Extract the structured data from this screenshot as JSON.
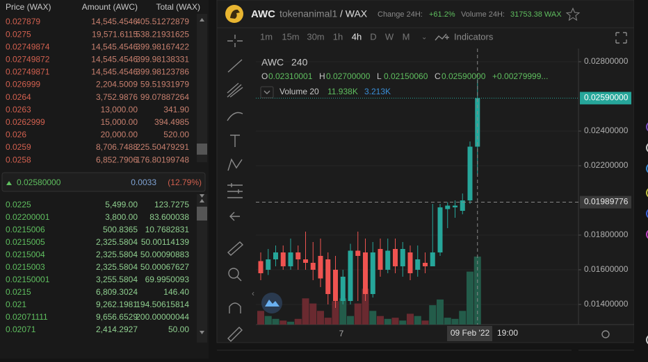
{
  "order_book": {
    "headers": [
      "Price (WAX)",
      "Amount (AWC)",
      "Total (WAX)"
    ],
    "asks": [
      [
        "0.027879",
        "14,545.4546",
        "405.51272879"
      ],
      [
        "0.0275",
        "19,571.6115",
        "538.21931625"
      ],
      [
        "0.02749874",
        "14,545.4546",
        "399.98167422"
      ],
      [
        "0.02749872",
        "14,545.4546",
        "399.98138331"
      ],
      [
        "0.02749871",
        "14,545.4546",
        "399.98123786"
      ],
      [
        "0.026999",
        "2,204.5009",
        "59.51931979"
      ],
      [
        "0.0264",
        "3,752.9876",
        "99.07887264"
      ],
      [
        "0.0263",
        "13,000.00",
        "341.90"
      ],
      [
        "0.0262999",
        "15,000.00",
        "394.4985"
      ],
      [
        "0.026",
        "20,000.00",
        "520.00"
      ],
      [
        "0.0259",
        "8,706.7488",
        "225.50479291"
      ],
      [
        "0.0258",
        "6,852.7906",
        "176.80199748"
      ]
    ],
    "mid": {
      "price": "0.02580000",
      "change": "0.0033",
      "percent": "(12.79%)"
    },
    "bids": [
      [
        "0.0225",
        "5,499.00",
        "123.7275"
      ],
      [
        "0.02200001",
        "3,800.00",
        "83.600038"
      ],
      [
        "0.0215006",
        "500.8365",
        "10.7682831"
      ],
      [
        "0.0215005",
        "2,325.5804",
        "50.00114139"
      ],
      [
        "0.0215004",
        "2,325.5804",
        "50.00090883"
      ],
      [
        "0.0215003",
        "2,325.5804",
        "50.00067627"
      ],
      [
        "0.02150001",
        "3,255.5804",
        "69.9950093"
      ],
      [
        "0.0215",
        "6,809.3024",
        "146.40"
      ],
      [
        "0.021",
        "9,262.1981",
        "194.50615814"
      ],
      [
        "0.02071111",
        "9,656.6529",
        "200.00000044"
      ],
      [
        "0.02071",
        "2,414.2927",
        "50.00"
      ]
    ]
  },
  "market": {
    "symbol": "AWC",
    "contract": "tokenanimal1",
    "pair": "/ WAX",
    "change_label": "Change 24H:",
    "change": "+61.2%",
    "volume_label": "Volume 24H:",
    "volume": "31753.38 WAX"
  },
  "toolbar": {
    "intervals": [
      "1m",
      "15m",
      "30m",
      "1h",
      "4h",
      "D",
      "W",
      "M"
    ],
    "indicators": "Indicators"
  },
  "legend": {
    "symbol": "AWC",
    "interval": "240",
    "ohlc": [
      {
        "label": "O",
        "value": "0.02310001"
      },
      {
        "label": "H",
        "value": "0.02700000"
      },
      {
        "label": "L",
        "value": "0.02150060"
      },
      {
        "label": "C",
        "value": "0.02590000"
      }
    ],
    "change": "+0.00279999...",
    "volume_label": "Volume 20",
    "volume": "11.938K",
    "volume_ma": "3.213K"
  },
  "chart": {
    "ylim": [
      0.01284,
      0.02876
    ],
    "yticks": [
      {
        "value": 0.028,
        "label": "0.02800000"
      },
      {
        "value": 0.024,
        "label": "0.02400000"
      },
      {
        "value": 0.022,
        "label": "0.02200000"
      },
      {
        "value": 0.018,
        "label": "0.01800000"
      },
      {
        "value": 0.016,
        "label": "0.01600000"
      },
      {
        "value": 0.014,
        "label": "0.01400000"
      }
    ],
    "last_price": {
      "value": 0.0259,
      "label": "0.02590000"
    },
    "crosshair": 0.01989776,
    "x_label": "7",
    "crosshair_date": "09 Feb '22",
    "crosshair_time": "19:00",
    "candles": [
      {
        "open": 0.0165,
        "high": 0.017,
        "low": 0.0154,
        "close": 0.0158,
        "volume": 2400
      },
      {
        "open": 0.016,
        "high": 0.0172,
        "low": 0.0157,
        "close": 0.0166,
        "volume": 1500
      },
      {
        "open": 0.0166,
        "high": 0.0174,
        "low": 0.0162,
        "close": 0.017,
        "volume": 1000
      },
      {
        "open": 0.017,
        "high": 0.0174,
        "low": 0.016,
        "close": 0.0162,
        "volume": 700
      },
      {
        "open": 0.0162,
        "high": 0.0178,
        "low": 0.016,
        "close": 0.017,
        "volume": 500
      },
      {
        "open": 0.017,
        "high": 0.0174,
        "low": 0.016,
        "close": 0.0166,
        "volume": 1000
      },
      {
        "open": 0.0166,
        "high": 0.0182,
        "low": 0.016,
        "close": 0.0164,
        "volume": 4600
      },
      {
        "open": 0.0164,
        "high": 0.0176,
        "low": 0.0154,
        "close": 0.016,
        "volume": 3700
      },
      {
        "open": 0.0168,
        "high": 0.0178,
        "low": 0.015,
        "close": 0.0155,
        "volume": 2400
      },
      {
        "open": 0.0166,
        "high": 0.017,
        "low": 0.014,
        "close": 0.0146,
        "volume": 1200
      },
      {
        "open": 0.016,
        "high": 0.0168,
        "low": 0.0138,
        "close": 0.0142,
        "volume": 4100
      },
      {
        "open": 0.0142,
        "high": 0.016,
        "low": 0.014,
        "close": 0.0156,
        "volume": 4600
      },
      {
        "open": 0.0142,
        "high": 0.0175,
        "low": 0.014,
        "close": 0.0171,
        "volume": 1500
      },
      {
        "open": 0.0171,
        "high": 0.0182,
        "low": 0.0142,
        "close": 0.0168,
        "volume": 3700
      },
      {
        "open": 0.017,
        "high": 0.0178,
        "low": 0.0142,
        "close": 0.0146,
        "volume": 6300
      },
      {
        "open": 0.0146,
        "high": 0.0176,
        "low": 0.0144,
        "close": 0.017,
        "volume": 2400
      },
      {
        "open": 0.0172,
        "high": 0.0178,
        "low": 0.0156,
        "close": 0.016,
        "volume": 1500
      },
      {
        "open": 0.016,
        "high": 0.0178,
        "low": 0.0158,
        "close": 0.0171,
        "volume": 1000
      },
      {
        "open": 0.0172,
        "high": 0.0178,
        "low": 0.0158,
        "close": 0.0162,
        "volume": 1200
      },
      {
        "open": 0.0162,
        "high": 0.0176,
        "low": 0.0156,
        "close": 0.0172,
        "volume": 700
      },
      {
        "open": 0.017,
        "high": 0.0174,
        "low": 0.0154,
        "close": 0.0158,
        "volume": 1900
      },
      {
        "open": 0.016,
        "high": 0.0174,
        "low": 0.0156,
        "close": 0.0166,
        "volume": 1500
      },
      {
        "open": 0.0164,
        "high": 0.017,
        "low": 0.0158,
        "close": 0.0162,
        "volume": 700
      },
      {
        "open": 0.0162,
        "high": 0.0198,
        "low": 0.0162,
        "close": 0.017,
        "volume": 3400
      },
      {
        "open": 0.017,
        "high": 0.0198,
        "low": 0.0168,
        "close": 0.0196,
        "volume": 4400
      },
      {
        "open": 0.0195,
        "high": 0.0199,
        "low": 0.0184,
        "close": 0.0197,
        "volume": 1200
      },
      {
        "open": 0.0196,
        "high": 0.02,
        "low": 0.019,
        "close": 0.0197,
        "volume": 1000
      },
      {
        "open": 0.0194,
        "high": 0.0204,
        "low": 0.0192,
        "close": 0.02,
        "volume": 2400
      },
      {
        "open": 0.02,
        "high": 0.0234,
        "low": 0.0198,
        "close": 0.0231,
        "volume": 9300
      },
      {
        "open": 0.0231,
        "high": 0.027,
        "low": 0.0215,
        "close": 0.0259,
        "volume": 11938
      }
    ]
  }
}
